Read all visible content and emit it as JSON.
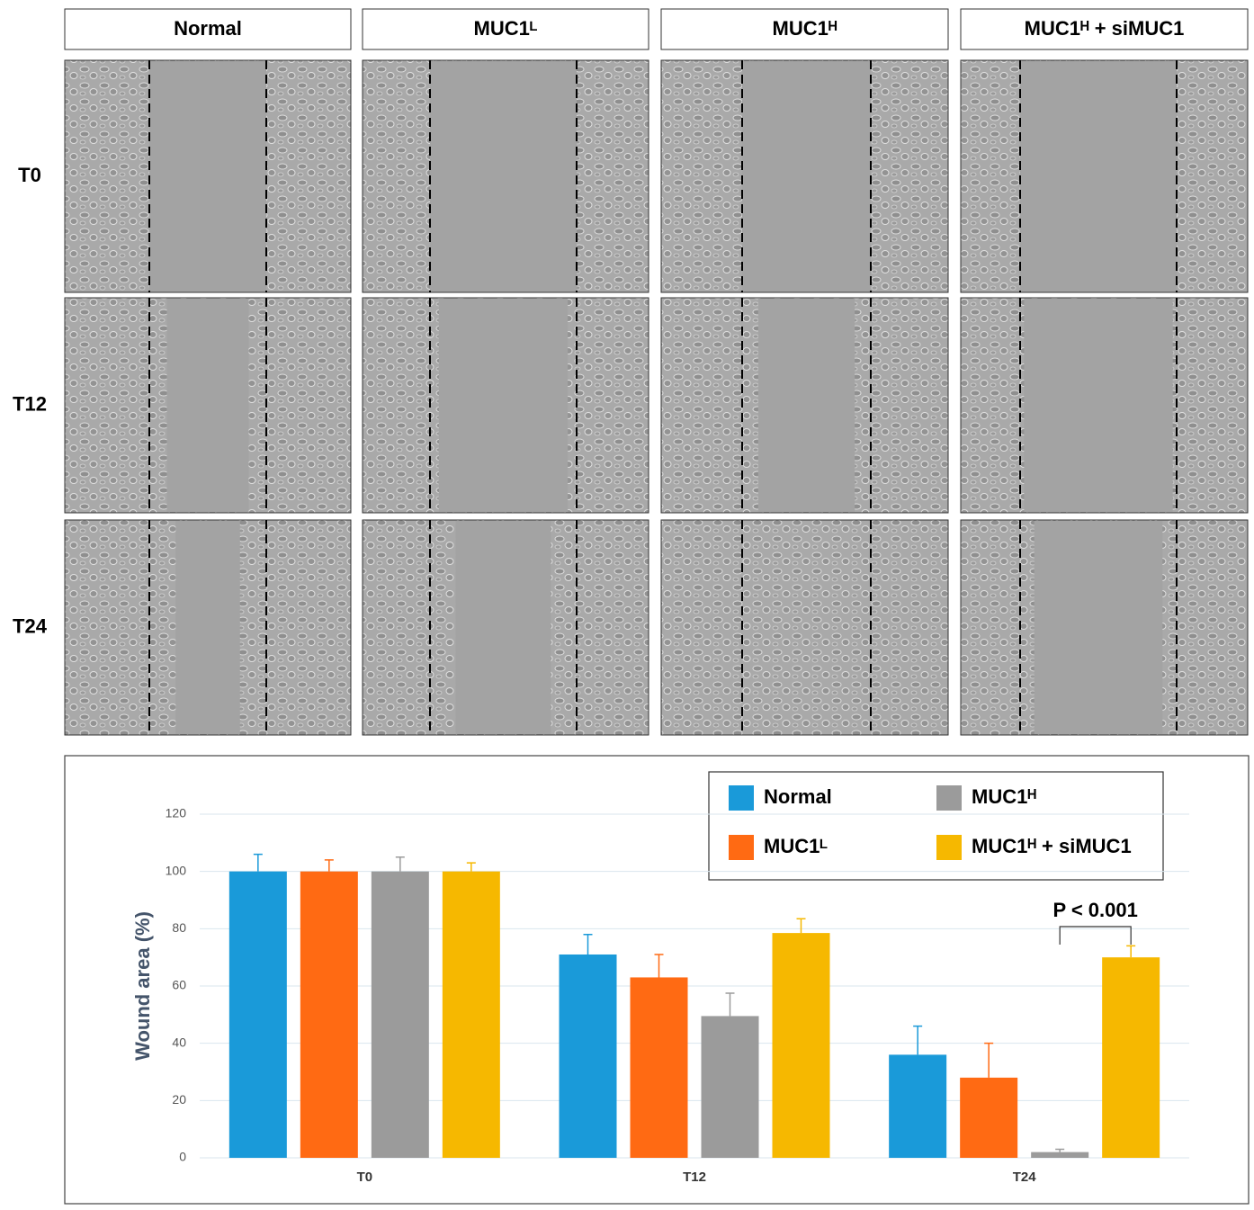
{
  "panels": {
    "columns": [
      "Normal",
      "MUC1ᴸ",
      "MUC1ᴴ",
      "MUC1ᴴ + siMUC1"
    ],
    "rows": [
      "T0",
      "T12",
      "T24"
    ]
  },
  "chart_data": {
    "type": "bar",
    "y_label": "Wound area (%)",
    "categories": [
      "T0",
      "T12",
      "T24"
    ],
    "series": [
      {
        "name": "Normal",
        "color": "#1a9ad9",
        "values": [
          100,
          71,
          36
        ],
        "errors": [
          6,
          7,
          10
        ]
      },
      {
        "name": "MUC1ᴸ",
        "color": "#ff6a13",
        "values": [
          100,
          63,
          28
        ],
        "errors": [
          4,
          8,
          12
        ]
      },
      {
        "name": "MUC1ᴴ",
        "color": "#9b9b9b",
        "values": [
          100,
          49.5,
          2
        ],
        "errors": [
          5,
          8,
          1
        ]
      },
      {
        "name": "MUC1ᴴ + siMUC1",
        "color": "#f6b800",
        "values": [
          100,
          78.5,
          70
        ],
        "errors": [
          3,
          5,
          4
        ]
      }
    ],
    "annotation": "P < 0.001",
    "ylim": [
      0,
      120
    ],
    "yticks": [
      0,
      20,
      40,
      60,
      80,
      100,
      120
    ],
    "grid": true,
    "legend": "top-right"
  }
}
